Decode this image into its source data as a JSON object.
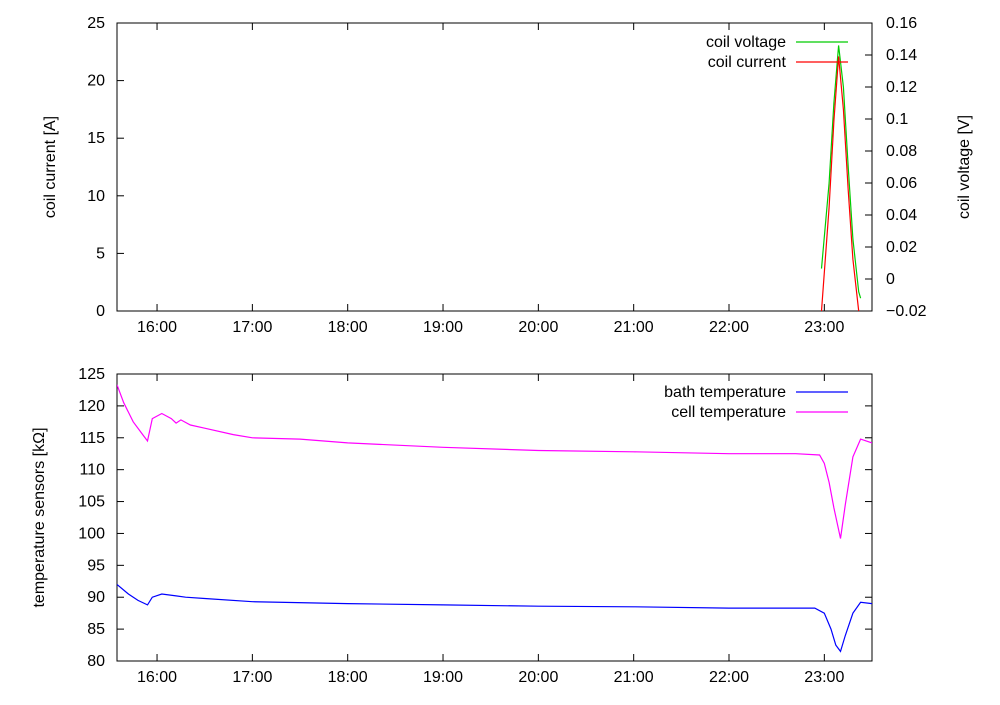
{
  "chart_data": [
    {
      "type": "line",
      "x_unit": "time (hours, 24h clock)",
      "xlim": [
        15.58,
        23.5
      ],
      "xticks": [
        16,
        17,
        18,
        19,
        20,
        21,
        22,
        23
      ],
      "xtick_labels": [
        "16:00",
        "17:00",
        "18:00",
        "19:00",
        "20:00",
        "21:00",
        "22:00",
        "23:00"
      ],
      "ylabel": "coil current [A]",
      "ylim": [
        0,
        25
      ],
      "yticks": [
        0,
        5,
        10,
        15,
        20,
        25
      ],
      "y2label": "coil voltage [V]",
      "y2lim": [
        -0.02,
        0.16
      ],
      "y2ticks": [
        -0.02,
        0,
        0.02,
        0.04,
        0.06,
        0.08,
        0.1,
        0.12,
        0.14,
        0.16
      ],
      "y2tick_labels": [
        "−0.02",
        "0",
        "0.02",
        "0.04",
        "0.06",
        "0.08",
        "0.1",
        "0.12",
        "0.14",
        "0.16"
      ],
      "legend_position": "top-right",
      "series": [
        {
          "name": "coil voltage",
          "axis": "right",
          "color": "#00cc00",
          "x": [
            22.97,
            23.05,
            23.1,
            23.15,
            23.2,
            23.25,
            23.3,
            23.36,
            23.38
          ],
          "y": [
            0.0065,
            0.06,
            0.11,
            0.146,
            0.12,
            0.07,
            0.025,
            -0.008,
            -0.012
          ]
        },
        {
          "name": "coil current",
          "axis": "left",
          "color": "#ff0000",
          "x": [
            22.97,
            23.05,
            23.1,
            23.15,
            23.2,
            23.25,
            23.3,
            23.36
          ],
          "y": [
            0,
            9.0,
            16.5,
            22.1,
            17.5,
            10.5,
            4.5,
            0
          ]
        }
      ]
    },
    {
      "type": "line",
      "x_unit": "time (hours, 24h clock)",
      "xlim": [
        15.58,
        23.5
      ],
      "xticks": [
        16,
        17,
        18,
        19,
        20,
        21,
        22,
        23
      ],
      "xtick_labels": [
        "16:00",
        "17:00",
        "18:00",
        "19:00",
        "20:00",
        "21:00",
        "22:00",
        "23:00"
      ],
      "ylabel": "temperature sensors [kΩ]",
      "ylim": [
        80,
        125
      ],
      "yticks": [
        80,
        85,
        90,
        95,
        100,
        105,
        110,
        115,
        120,
        125
      ],
      "legend_position": "top-right",
      "series": [
        {
          "name": "bath temperature",
          "color": "#0000ff",
          "x": [
            15.58,
            15.7,
            15.8,
            15.9,
            15.95,
            16.05,
            16.2,
            16.3,
            16.5,
            17.0,
            18.0,
            19.0,
            20.0,
            21.0,
            22.0,
            22.9,
            23.0,
            23.07,
            23.12,
            23.17,
            23.22,
            23.3,
            23.38,
            23.5
          ],
          "y": [
            92.0,
            90.5,
            89.5,
            88.8,
            90.0,
            90.5,
            90.2,
            90.0,
            89.8,
            89.3,
            89.0,
            88.8,
            88.6,
            88.5,
            88.3,
            88.3,
            87.5,
            85.0,
            82.5,
            81.5,
            84.0,
            87.5,
            89.2,
            89.0
          ]
        },
        {
          "name": "cell temperature",
          "color": "#ff00ff",
          "x": [
            15.58,
            15.65,
            15.75,
            15.85,
            15.9,
            15.95,
            16.05,
            16.15,
            16.2,
            16.25,
            16.35,
            16.5,
            16.8,
            17.0,
            17.5,
            18.0,
            19.0,
            20.0,
            21.0,
            22.0,
            22.7,
            22.95,
            23.0,
            23.05,
            23.1,
            23.17,
            23.22,
            23.3,
            23.38,
            23.5
          ],
          "y": [
            123.3,
            120.5,
            117.5,
            115.5,
            114.5,
            118.0,
            118.8,
            118.0,
            117.3,
            117.8,
            117.0,
            116.5,
            115.5,
            115.0,
            114.8,
            114.2,
            113.5,
            113.0,
            112.8,
            112.5,
            112.5,
            112.3,
            111.0,
            108.0,
            104.0,
            99.2,
            104.5,
            112.0,
            114.8,
            114.2
          ]
        }
      ]
    }
  ]
}
